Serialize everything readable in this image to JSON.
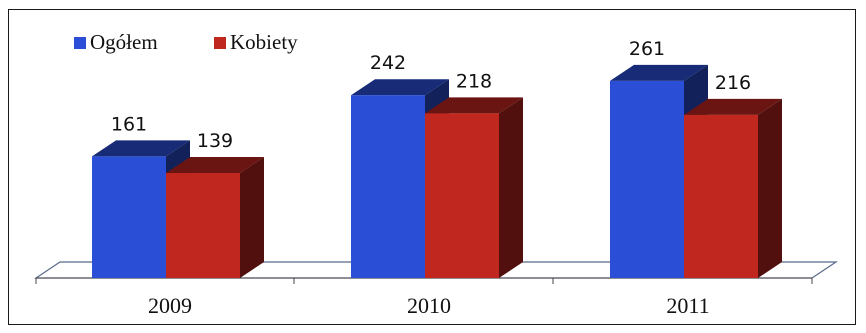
{
  "chart_data": {
    "type": "bar",
    "categories": [
      "2009",
      "2010",
      "2011"
    ],
    "series": [
      {
        "name": "Ogółem",
        "values": [
          161,
          242,
          261
        ],
        "color": "#2a4fd6"
      },
      {
        "name": "Kobiety",
        "values": [
          139,
          218,
          216
        ],
        "color": "#c0271f"
      }
    ],
    "legend_position": "top-left",
    "grid": false,
    "ylim": [
      0,
      300
    ],
    "three_d": true
  }
}
